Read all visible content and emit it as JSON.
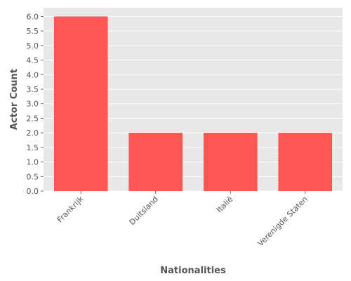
{
  "chart_data": {
    "type": "bar",
    "title": "",
    "xlabel": "Nationalities",
    "ylabel": "Actor Count",
    "categories": [
      "Frankrijk",
      "Duitsland",
      "Italië",
      "Verenigde Staten"
    ],
    "values": [
      6,
      2,
      2,
      2
    ],
    "ylim": [
      0,
      6.3
    ],
    "yticks": [
      "0.0",
      "0.5",
      "1.0",
      "1.5",
      "2.0",
      "2.5",
      "3.0",
      "3.5",
      "4.0",
      "4.5",
      "5.0",
      "5.5",
      "6.0"
    ],
    "grid": true,
    "colors": {
      "bar": "#ff5555",
      "plot_background": "#e8e8e8",
      "grid": "#ffffff",
      "text": "#555555"
    }
  }
}
